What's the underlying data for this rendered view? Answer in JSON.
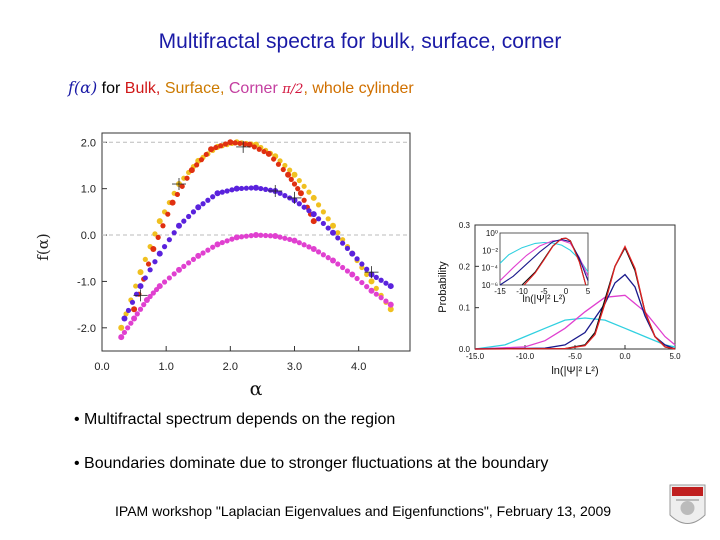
{
  "slide": {
    "title": "Multifractal spectra for bulk, surface, corner",
    "subtitle": {
      "func": "f(α)",
      "for_text": "for",
      "bulk": "Bulk,",
      "surface": "Surface,",
      "corner": "Corner",
      "angle": "π/2",
      "separator": ",",
      "whole": "whole cylinder"
    },
    "bullets": [
      "• Multifractal spectrum depends on the region",
      "• Boundaries dominate due to stronger fluctuations at the boundary"
    ],
    "footer": "IPAM workshop \"Laplacian Eigenvalues and Eigenfunctions\", February 13, 2009"
  },
  "chart_data": [
    {
      "type": "scatter",
      "title": "",
      "xlabel": "α",
      "ylabel": "f(α)",
      "xlim": [
        0.0,
        4.8
      ],
      "ylim": [
        -2.5,
        2.2
      ],
      "xticks": [
        "0.0",
        "1.0",
        "2.0",
        "3.0",
        "4.0"
      ],
      "yticks": [
        "2.0",
        "1.0",
        "0.0",
        "-1.0",
        "-2.0"
      ],
      "reference_lines_y": [
        2.0,
        0.0
      ],
      "series": [
        {
          "name": "whole cylinder",
          "color": "#f0c020",
          "x": [
            0.3,
            0.6,
            0.9,
            1.2,
            1.5,
            1.8,
            2.1,
            2.4,
            2.7,
            3.0,
            3.3,
            3.6,
            3.9,
            4.2,
            4.5
          ],
          "y": [
            -2.0,
            -0.8,
            0.3,
            1.1,
            1.6,
            1.9,
            2.0,
            1.95,
            1.7,
            1.3,
            0.8,
            0.2,
            -0.4,
            -1.0,
            -1.6
          ]
        },
        {
          "name": "Bulk",
          "color": "#e03010",
          "x": [
            0.5,
            0.8,
            1.1,
            1.4,
            1.7,
            2.0,
            2.3,
            2.6,
            2.9,
            3.1,
            3.3
          ],
          "y": [
            -1.6,
            -0.3,
            0.7,
            1.4,
            1.85,
            2.0,
            1.95,
            1.75,
            1.3,
            0.9,
            0.3
          ]
        },
        {
          "name": "Surface",
          "color": "#5a22dd",
          "x": [
            0.35,
            0.6,
            0.9,
            1.2,
            1.5,
            1.8,
            2.1,
            2.4,
            2.7,
            3.0,
            3.3,
            3.6,
            3.9,
            4.2,
            4.5
          ],
          "y": [
            -1.8,
            -1.1,
            -0.4,
            0.2,
            0.6,
            0.9,
            1.0,
            1.02,
            0.95,
            0.75,
            0.45,
            0.05,
            -0.4,
            -0.85,
            -1.1
          ]
        },
        {
          "name": "Corner",
          "color": "#e040d0",
          "x": [
            0.3,
            0.5,
            0.7,
            0.9,
            1.2,
            1.5,
            1.8,
            2.1,
            2.4,
            2.7,
            3.0,
            3.3,
            3.6,
            3.9,
            4.2,
            4.5
          ],
          "y": [
            -2.2,
            -1.8,
            -1.4,
            -1.1,
            -0.75,
            -0.45,
            -0.2,
            -0.05,
            0.0,
            -0.02,
            -0.12,
            -0.3,
            -0.55,
            -0.85,
            -1.2,
            -1.5
          ]
        }
      ]
    },
    {
      "type": "line",
      "title": "",
      "xlabel": "ln(|Ψ|² L²)",
      "ylabel": "Probability",
      "xlim": [
        -15.0,
        5.0
      ],
      "ylim": [
        0.0,
        0.3
      ],
      "xticks": [
        "-15.0",
        "-10.0",
        "-5.0",
        "0.0",
        "5.0"
      ],
      "yticks": [
        "0.3",
        "0.2",
        "0.1",
        "0.0"
      ],
      "series": [
        {
          "name": "cyan",
          "color": "#30d0e0",
          "x": [
            -15,
            -12,
            -10,
            -8,
            -6,
            -4,
            -2,
            0,
            2,
            4,
            5
          ],
          "y": [
            0.0,
            0.01,
            0.03,
            0.05,
            0.07,
            0.075,
            0.07,
            0.05,
            0.03,
            0.01,
            0.005
          ]
        },
        {
          "name": "magenta",
          "color": "#e040d0",
          "x": [
            -15,
            -10,
            -8,
            -6,
            -4,
            -2,
            0,
            2,
            4,
            5
          ],
          "y": [
            0.0,
            0.005,
            0.02,
            0.05,
            0.09,
            0.125,
            0.13,
            0.09,
            0.03,
            0.01
          ]
        },
        {
          "name": "blue",
          "color": "#1a1a8c",
          "x": [
            -15,
            -8,
            -6,
            -4,
            -2,
            -1,
            0,
            1,
            2,
            3,
            4,
            5
          ],
          "y": [
            0.0,
            0.002,
            0.01,
            0.04,
            0.11,
            0.16,
            0.18,
            0.15,
            0.08,
            0.03,
            0.01,
            0.0
          ]
        },
        {
          "name": "black",
          "color": "#111111",
          "x": [
            -15,
            -6,
            -4,
            -3,
            -2,
            -1,
            0,
            1,
            2,
            3,
            4,
            5
          ],
          "y": [
            0.0,
            0.001,
            0.01,
            0.04,
            0.12,
            0.2,
            0.245,
            0.19,
            0.09,
            0.03,
            0.005,
            0.0
          ]
        },
        {
          "name": "red",
          "color": "#e02020",
          "x": [
            -15,
            -6,
            -4,
            -3,
            -2,
            -1,
            0,
            1,
            2,
            3,
            4,
            5
          ],
          "y": [
            0.0,
            0.001,
            0.008,
            0.035,
            0.11,
            0.2,
            0.248,
            0.195,
            0.09,
            0.03,
            0.005,
            0.0
          ]
        }
      ]
    },
    {
      "type": "line",
      "title": "",
      "xlabel": "ln(|Ψ|² L²)",
      "ylabel": "",
      "scale": "log",
      "xlim": [
        -15.0,
        5.0
      ],
      "ylim_log10": [
        -6,
        0
      ],
      "xticks": [
        "-15",
        "-10",
        "-5",
        "0",
        "5"
      ],
      "yticks": [
        "10⁰",
        "10⁻²",
        "10⁻⁴",
        "10⁻⁶"
      ],
      "series": [
        {
          "name": "cyan",
          "color": "#30d0e0",
          "x": [
            -15,
            -13,
            -10,
            -7,
            -5,
            -3,
            -1,
            1,
            3,
            5
          ],
          "y_log10": [
            -3.5,
            -2.5,
            -1.7,
            -1.2,
            -1.1,
            -1.15,
            -1.4,
            -2.0,
            -3.0,
            -4.5
          ]
        },
        {
          "name": "magenta",
          "color": "#e040d0",
          "x": [
            -15,
            -12,
            -9,
            -6,
            -3,
            -1,
            1,
            3,
            5
          ],
          "y_log10": [
            -5.5,
            -4.0,
            -2.6,
            -1.5,
            -0.9,
            -0.85,
            -1.2,
            -2.8,
            -5.0
          ]
        },
        {
          "name": "blue",
          "color": "#1a1a8c",
          "x": [
            -15,
            -12,
            -9,
            -6,
            -3,
            -1,
            1,
            3,
            5
          ],
          "y_log10": [
            -6,
            -5.0,
            -3.6,
            -2.2,
            -1.0,
            -0.75,
            -1.0,
            -2.9,
            -5.5
          ]
        },
        {
          "name": "black",
          "color": "#111111",
          "x": [
            -10,
            -7,
            -5,
            -3,
            -1,
            0,
            1,
            3,
            4.5
          ],
          "y_log10": [
            -6,
            -4.5,
            -3.0,
            -1.5,
            -0.65,
            -0.6,
            -0.9,
            -3.2,
            -6
          ]
        },
        {
          "name": "red",
          "color": "#e02020",
          "x": [
            -9.5,
            -7,
            -5,
            -3,
            -1,
            0,
            1,
            3,
            4.5
          ],
          "y_log10": [
            -6,
            -4.6,
            -3.1,
            -1.55,
            -0.65,
            -0.6,
            -0.92,
            -3.3,
            -6
          ]
        }
      ]
    }
  ]
}
